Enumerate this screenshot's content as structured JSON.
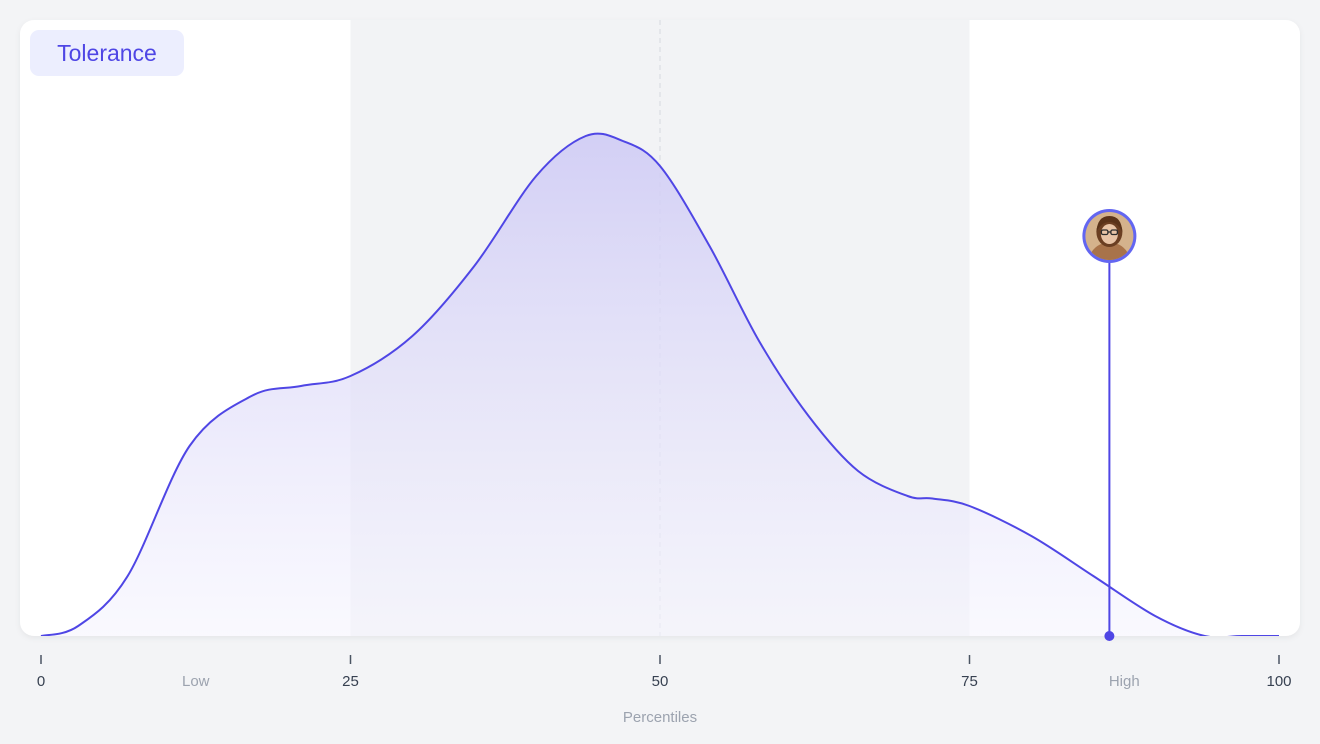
{
  "badge": {
    "label": "Tolerance"
  },
  "chart_data": {
    "type": "area",
    "x": [
      0,
      3,
      7,
      12,
      17,
      21,
      25,
      30,
      35,
      40,
      44,
      47,
      50,
      54,
      58,
      62,
      66,
      70,
      72,
      75,
      80,
      85,
      90,
      94,
      97,
      100
    ],
    "y": [
      0,
      2,
      12,
      38,
      48,
      50,
      52,
      60,
      74,
      92,
      100,
      99,
      94,
      78,
      59,
      44,
      33,
      28,
      27.5,
      26,
      20,
      12,
      4,
      0,
      0,
      0
    ],
    "xlim": [
      0,
      100
    ],
    "ylim": [
      0,
      100
    ],
    "x_ticks": [
      "0",
      "25",
      "50",
      "75",
      "100"
    ],
    "band_labels": [
      "Low",
      "High"
    ],
    "xlabel": "Percentiles",
    "highlight_range": [
      25,
      75
    ],
    "median_line": 50,
    "marker": {
      "x": 86.3,
      "level": 80,
      "avatar": "person-avatar"
    },
    "grid": false,
    "colors": {
      "line": "#4f46e5",
      "fill_top": "#cfcbf5",
      "fill_bottom": "#f6f5fe",
      "band": "#f2f3f5",
      "badge_bg": "#eceefe"
    }
  }
}
